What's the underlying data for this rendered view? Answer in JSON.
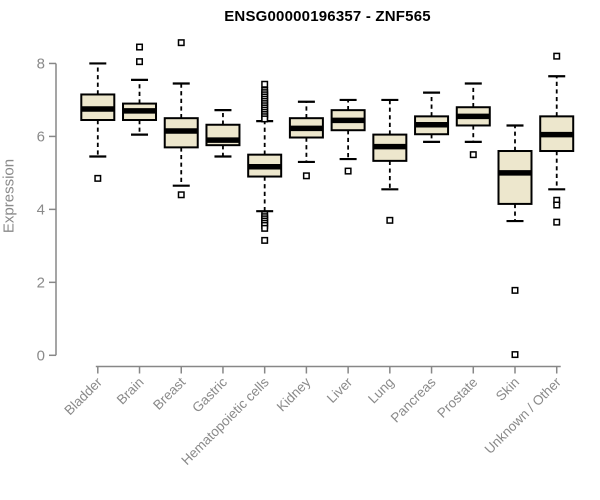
{
  "chart_data": {
    "type": "boxplot",
    "title": "ENSG00000196357 - ZNF565",
    "ylabel": "Expression",
    "xlabel": "",
    "ylim": [
      0,
      8.6
    ],
    "yticks": [
      0,
      2,
      4,
      6,
      8
    ],
    "grid": false,
    "legend": false,
    "categories": [
      "Bladder",
      "Brain",
      "Breast",
      "Gastric",
      "Hematopoietic cells",
      "Kidney",
      "Liver",
      "Lung",
      "Pancreas",
      "Prostate",
      "Skin",
      "Unknown / Other"
    ],
    "series": [
      {
        "name": "Bladder",
        "whisker_low": 5.45,
        "q1": 6.45,
        "median": 6.75,
        "q3": 7.15,
        "whisker_high": 8.0,
        "outliers": [
          4.85
        ]
      },
      {
        "name": "Brain",
        "whisker_low": 6.05,
        "q1": 6.45,
        "median": 6.7,
        "q3": 6.9,
        "whisker_high": 7.55,
        "outliers": [
          8.45,
          8.05
        ]
      },
      {
        "name": "Breast",
        "whisker_low": 4.65,
        "q1": 5.7,
        "median": 6.15,
        "q3": 6.5,
        "whisker_high": 7.45,
        "outliers": [
          8.57,
          4.4
        ]
      },
      {
        "name": "Gastric",
        "whisker_low": 5.45,
        "q1": 5.76,
        "median": 5.9,
        "q3": 6.32,
        "whisker_high": 6.72,
        "outliers": []
      },
      {
        "name": "Hematopoietic cells",
        "whisker_low": 3.95,
        "q1": 4.9,
        "median": 5.17,
        "q3": 5.5,
        "whisker_high": 6.42,
        "outliers": [
          7.43,
          7.26,
          7.2,
          7.14,
          7.08,
          7.02,
          6.96,
          6.9,
          6.84,
          6.78,
          6.72,
          6.66,
          6.6,
          6.54,
          6.48,
          3.86,
          3.8,
          3.74,
          3.68,
          3.62,
          3.56,
          3.48,
          3.15
        ]
      },
      {
        "name": "Kidney",
        "whisker_low": 5.3,
        "q1": 5.97,
        "median": 6.22,
        "q3": 6.5,
        "whisker_high": 6.95,
        "outliers": [
          4.92
        ]
      },
      {
        "name": "Liver",
        "whisker_low": 5.38,
        "q1": 6.17,
        "median": 6.44,
        "q3": 6.72,
        "whisker_high": 7.0,
        "outliers": [
          5.05
        ]
      },
      {
        "name": "Lung",
        "whisker_low": 4.55,
        "q1": 5.33,
        "median": 5.72,
        "q3": 6.05,
        "whisker_high": 7.0,
        "outliers": [
          3.7
        ]
      },
      {
        "name": "Pancreas",
        "whisker_low": 5.85,
        "q1": 6.06,
        "median": 6.32,
        "q3": 6.55,
        "whisker_high": 7.2,
        "outliers": []
      },
      {
        "name": "Prostate",
        "whisker_low": 5.85,
        "q1": 6.3,
        "median": 6.55,
        "q3": 6.8,
        "whisker_high": 7.45,
        "outliers": [
          5.5
        ]
      },
      {
        "name": "Skin",
        "whisker_low": 3.68,
        "q1": 4.15,
        "median": 5.0,
        "q3": 5.6,
        "whisker_high": 6.3,
        "outliers": [
          1.78,
          0.02
        ]
      },
      {
        "name": "Unknown / Other",
        "whisker_low": 4.55,
        "q1": 5.6,
        "median": 6.05,
        "q3": 6.55,
        "whisker_high": 7.65,
        "outliers": [
          8.2,
          4.25,
          4.12,
          3.65
        ]
      }
    ],
    "colors": {
      "box_fill": "#EDE7CD",
      "box_border": "#000000",
      "median": "#000000",
      "whisker": "#000000",
      "outlier_stroke": "#000000",
      "outlier_fill": "#ffffff",
      "axis": "#878787",
      "tick_text": "#8a8a8a",
      "title_text": "#000000",
      "background": "#ffffff"
    }
  }
}
